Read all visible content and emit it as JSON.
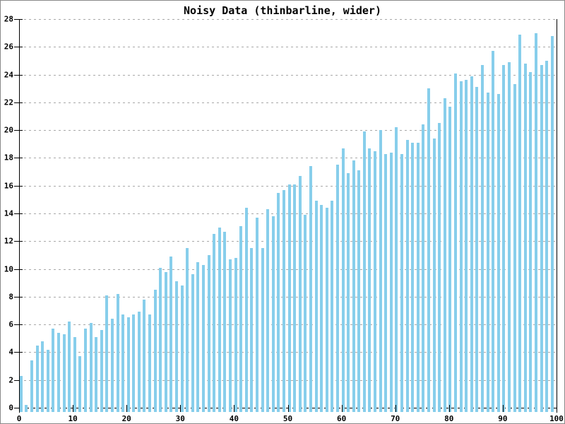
{
  "chart_data": {
    "type": "bar",
    "title": "Noisy Data (thinbarline, wider)",
    "xlabel": "",
    "ylabel": "",
    "xlim": [
      0,
      100
    ],
    "ylim": [
      0,
      28
    ],
    "x_ticks": [
      0,
      10,
      20,
      30,
      40,
      50,
      60,
      70,
      80,
      90,
      100
    ],
    "y_ticks": [
      0,
      2,
      4,
      6,
      8,
      10,
      12,
      14,
      16,
      18,
      20,
      22,
      24,
      26,
      28
    ],
    "n_bars": 100,
    "grid": "horizontal dotted gridlines at every y tick; dashed black line at y=0",
    "legend": "none",
    "bar_color": "#87CEEB",
    "axis_color": "#000000",
    "gridline_color": "#a8a8a8",
    "background_color": "#ffffff",
    "values": [
      2.3,
      0.2,
      3.4,
      4.5,
      4.8,
      4.2,
      5.7,
      5.4,
      5.3,
      6.2,
      5.1,
      3.7,
      5.7,
      6.1,
      5.1,
      5.6,
      8.1,
      6.4,
      8.2,
      6.7,
      6.5,
      6.7,
      6.9,
      7.8,
      6.7,
      8.5,
      10.1,
      9.8,
      10.9,
      9.1,
      8.8,
      11.5,
      9.6,
      10.5,
      10.3,
      11.0,
      12.5,
      13.0,
      12.7,
      10.7,
      10.8,
      13.1,
      14.4,
      11.5,
      13.7,
      11.5,
      14.3,
      13.8,
      15.5,
      15.7,
      16.1,
      16.1,
      16.7,
      13.9,
      17.4,
      14.9,
      14.6,
      14.4,
      14.9,
      17.5,
      18.7,
      16.9,
      17.8,
      17.1,
      19.9,
      18.7,
      18.5,
      20.0,
      18.3,
      18.4,
      20.2,
      18.3,
      19.3,
      19.1,
      19.1,
      20.4,
      23.0,
      19.4,
      20.5,
      22.3,
      21.7,
      24.1,
      23.5,
      23.6,
      23.9,
      23.1,
      24.7,
      22.7,
      25.7,
      22.6,
      24.7,
      24.9,
      23.3,
      26.9,
      24.8,
      24.2,
      27.0,
      24.7,
      25.0,
      26.8
    ]
  }
}
